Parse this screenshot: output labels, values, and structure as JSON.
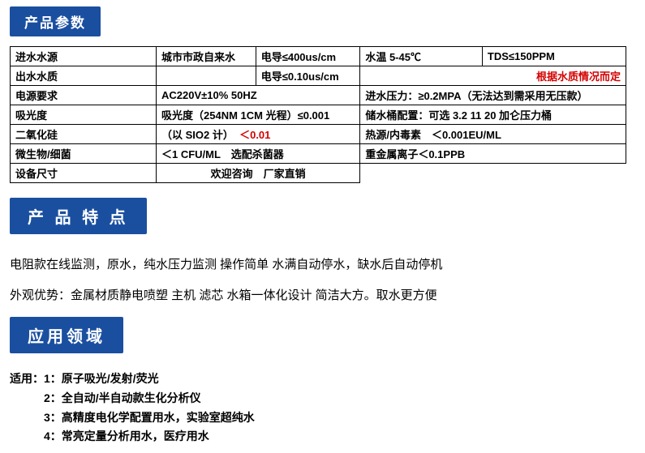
{
  "headers": {
    "params": "产品参数",
    "features": "产 品 特 点",
    "apps": "应用领域"
  },
  "colors": {
    "header_bg": "#1a4fa0",
    "header_fg": "#ffffff",
    "border": "#000000",
    "text": "#000000",
    "highlight": "#d40000",
    "background": "#ffffff"
  },
  "table": {
    "r1": {
      "label": "进水水源",
      "c1": "城市市政自来水",
      "c2": "电导≤400us/cm",
      "c3": "水温 5-45℃",
      "c4": "TDS≤150PPM"
    },
    "r2": {
      "label": "出水水质",
      "c1": "",
      "c2": "电导≤0.10us/cm",
      "c3": "根据水质情况而定"
    },
    "r3": {
      "label": "电源要求",
      "c1": "AC220V±10% 50HZ",
      "c2": "进水压力：≥0.2MPA（无法达到需采用无压款）"
    },
    "r4": {
      "label": "吸光度",
      "c1": "吸光度（254NM 1CM 光程）≤0.001",
      "c2": "储水桶配置：可选 3.2 11 20 加仑压力桶"
    },
    "r5": {
      "label": "二氧化硅",
      "c1a": "（以 SIO2 计）",
      "c1b": "＜0.01",
      "c2": "热源/内毒素　＜0.001EU/ML"
    },
    "r6": {
      "label": "微生物/细菌",
      "c1": "＜1 CFU/ML　选配杀菌器",
      "c2": "重金属离子＜0.1PPB"
    },
    "r7": {
      "label": "设备尺寸",
      "c1": "欢迎咨询　厂家直销"
    }
  },
  "features": {
    "line1": "电阻款在线监测，原水，纯水压力监测  操作简单  水满自动停水，缺水后自动停机",
    "line2": "外观优势：金属材质静电喷塑  主机  滤芯  水箱一体化设计  简洁大方。取水更方便"
  },
  "apps": {
    "intro": "适用：",
    "i1": "1：原子吸光/发射/荧光",
    "i2": "2：全自动/半自动款生化分析仪",
    "i3": "3：高精度电化学配置用水，实验室超纯水",
    "i4": "4：常亮定量分析用水，医疗用水"
  }
}
